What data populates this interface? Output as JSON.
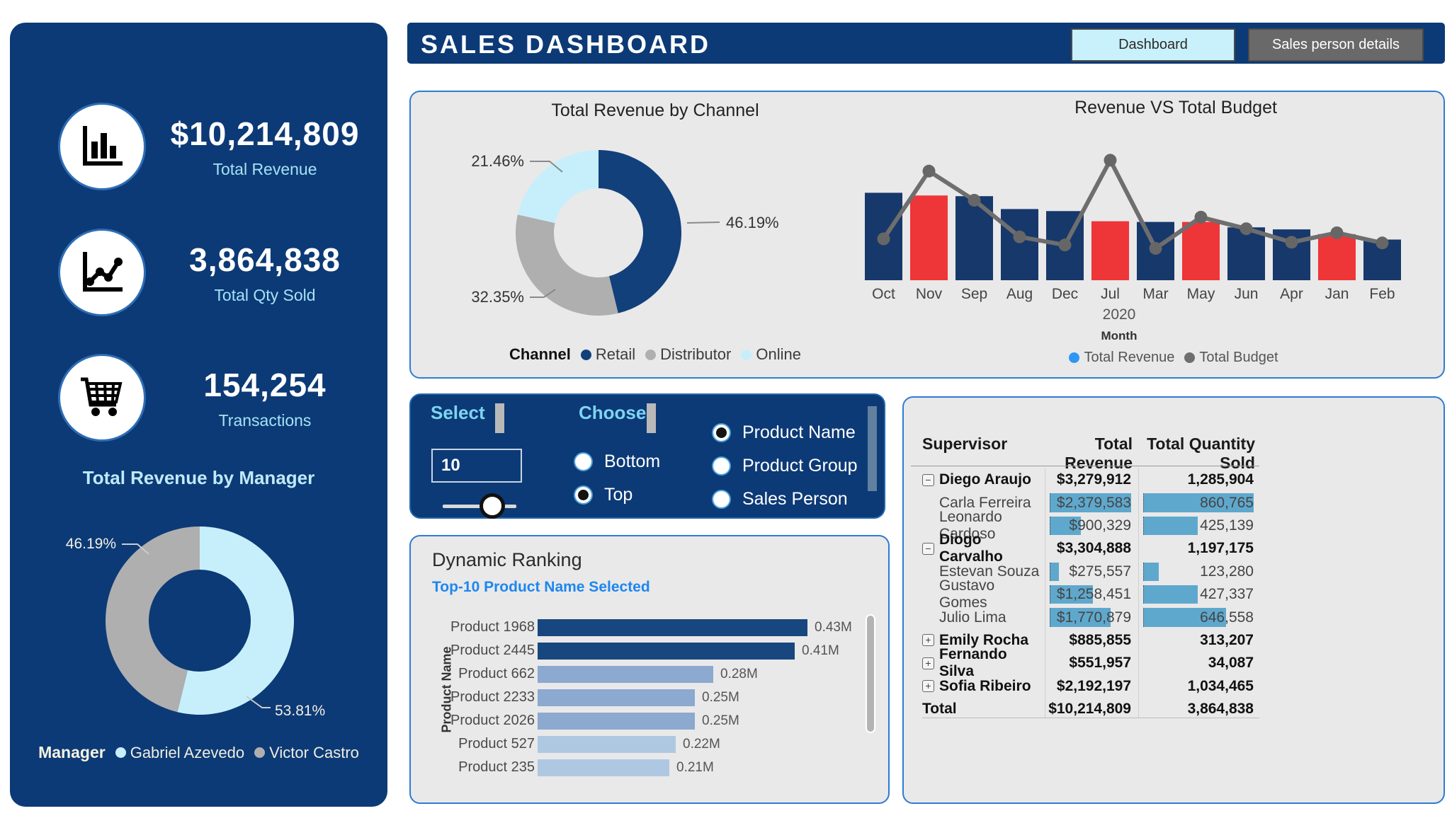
{
  "colors": {
    "navy": "#0C3A76",
    "bar_navy": "#17386B",
    "bar_red": "#EE3538",
    "line_gray": "#6E6E6E",
    "accent_blue": "#2E96F5",
    "donut_navy": "#12407B",
    "donut_gray": "#AFAFAF",
    "donut_cyan": "#C7EFFB",
    "databar_blue": "#5FA8CD",
    "subtitle_blue": "#1E86F0",
    "ranking_dark": "#17477E",
    "ranking_mid": "#8CA9CF",
    "ranking_light": "#AFC8E2"
  },
  "header": {
    "title": "SALES DASHBOARD",
    "tabs": [
      {
        "label": "Dashboard",
        "active": true
      },
      {
        "label": "Sales person details",
        "active": false
      }
    ]
  },
  "sidebar": {
    "kpis": [
      {
        "icon": "bar-chart-icon",
        "value": "$10,214,809",
        "label": "Total Revenue"
      },
      {
        "icon": "line-chart-icon",
        "value": "3,864,838",
        "label": "Total Qty Sold"
      },
      {
        "icon": "cart-icon",
        "value": "154,254",
        "label": "Transactions"
      }
    ],
    "manager_title": "Total Revenue by Manager"
  },
  "slicer": {
    "select_label": "Select",
    "select_value": "10",
    "choose_label": "Choose",
    "choose_options": [
      {
        "label": "Bottom",
        "selected": false
      },
      {
        "label": "Top",
        "selected": true
      }
    ],
    "field_options": [
      {
        "label": "Product Name",
        "selected": true
      },
      {
        "label": "Product Group",
        "selected": false
      },
      {
        "label": "Sales Person",
        "selected": false
      }
    ]
  },
  "chart_data": [
    {
      "id": "channel-donut",
      "type": "pie",
      "donut": true,
      "title": "Total Revenue by Channel",
      "legend_title": "Channel",
      "legend_position": "bottom",
      "slices": [
        {
          "label": "Retail",
          "pct": 46.19,
          "color_key": "donut_navy"
        },
        {
          "label": "Distributor",
          "pct": 32.35,
          "color_key": "donut_gray"
        },
        {
          "label": "Online",
          "pct": 21.46,
          "color_key": "donut_cyan"
        }
      ]
    },
    {
      "id": "revenue-vs-budget",
      "type": "bar",
      "subtype": "bar+line combo",
      "title": "Revenue VS Total Budget",
      "categories": [
        "Oct",
        "Nov",
        "Sep",
        "Aug",
        "Dec",
        "Jul",
        "Mar",
        "May",
        "Jun",
        "Apr",
        "Jan",
        "Feb"
      ],
      "x_group_label": "2020",
      "xlabel": "Month",
      "note": "no y-axis labels shown; values estimated in $M",
      "series": [
        {
          "name": "Total Revenue",
          "type": "bar",
          "values": [
            1.29,
            1.25,
            1.24,
            1.05,
            1.02,
            0.87,
            0.86,
            0.86,
            0.78,
            0.75,
            0.68,
            0.6
          ]
        },
        {
          "name": "Total Budget",
          "type": "line",
          "values": [
            0.61,
            1.61,
            1.18,
            0.64,
            0.52,
            1.77,
            0.47,
            0.93,
            0.76,
            0.56,
            0.7,
            0.55
          ]
        }
      ],
      "red_bar_indices": [
        1,
        5,
        7,
        10
      ],
      "legend_position": "bottom"
    },
    {
      "id": "dynamic-ranking",
      "type": "bar",
      "orientation": "horizontal",
      "title": "Dynamic Ranking",
      "subtitle": "Top-10 Product Name Selected",
      "ylabel": "Product Name",
      "categories": [
        "Product 1968",
        "Product 2445",
        "Product 662",
        "Product 2233",
        "Product 2026",
        "Product 527",
        "Product 235"
      ],
      "values": [
        0.43,
        0.41,
        0.28,
        0.25,
        0.25,
        0.22,
        0.21
      ],
      "value_labels": [
        "0.43M",
        "0.41M",
        "0.28M",
        "0.25M",
        "0.25M",
        "0.22M",
        "0.21M"
      ],
      "bar_color_keys": [
        "ranking_dark",
        "ranking_dark",
        "ranking_mid",
        "ranking_mid",
        "ranking_mid",
        "ranking_light",
        "ranking_light"
      ]
    },
    {
      "id": "manager-donut",
      "type": "pie",
      "donut": true,
      "title": "Total Revenue by Manager",
      "legend_title": "Manager",
      "legend_position": "bottom",
      "slices": [
        {
          "label": "Gabriel Azevedo",
          "pct": 53.81,
          "color_key": "donut_cyan"
        },
        {
          "label": "Victor Castro",
          "pct": 46.19,
          "color_key": "donut_gray"
        }
      ]
    },
    {
      "id": "supervisor-matrix",
      "type": "table",
      "columns": [
        "Supervisor",
        "Total Revenue",
        "Total Quantity Sold"
      ],
      "rows": [
        {
          "name": "Diego Araujo",
          "level": "supervisor",
          "expander": "collapse",
          "revenue": "$3,279,912",
          "qty": "1,285,904"
        },
        {
          "name": "Carla Ferreira",
          "level": "child",
          "revenue": "$2,379,583",
          "qty": "860,765"
        },
        {
          "name": "Leonardo Cardoso",
          "level": "child",
          "revenue": "$900,329",
          "qty": "425,139"
        },
        {
          "name": "Diogo Carvalho",
          "level": "supervisor",
          "expander": "collapse",
          "revenue": "$3,304,888",
          "qty": "1,197,175"
        },
        {
          "name": "Estevan Souza",
          "level": "child",
          "revenue": "$275,557",
          "qty": "123,280"
        },
        {
          "name": "Gustavo Gomes",
          "level": "child",
          "revenue": "$1,258,451",
          "qty": "427,337"
        },
        {
          "name": "Julio Lima",
          "level": "child",
          "revenue": "$1,770,879",
          "qty": "646,558"
        },
        {
          "name": "Emily Rocha",
          "level": "supervisor",
          "expander": "expand",
          "revenue": "$885,855",
          "qty": "313,207"
        },
        {
          "name": "Fernando Silva",
          "level": "supervisor",
          "expander": "expand",
          "revenue": "$551,957",
          "qty": "34,087"
        },
        {
          "name": "Sofia Ribeiro",
          "level": "supervisor",
          "expander": "expand",
          "revenue": "$2,192,197",
          "qty": "1,034,465"
        },
        {
          "name": "Total",
          "level": "total",
          "revenue": "$10,214,809",
          "qty": "3,864,838"
        }
      ]
    }
  ]
}
